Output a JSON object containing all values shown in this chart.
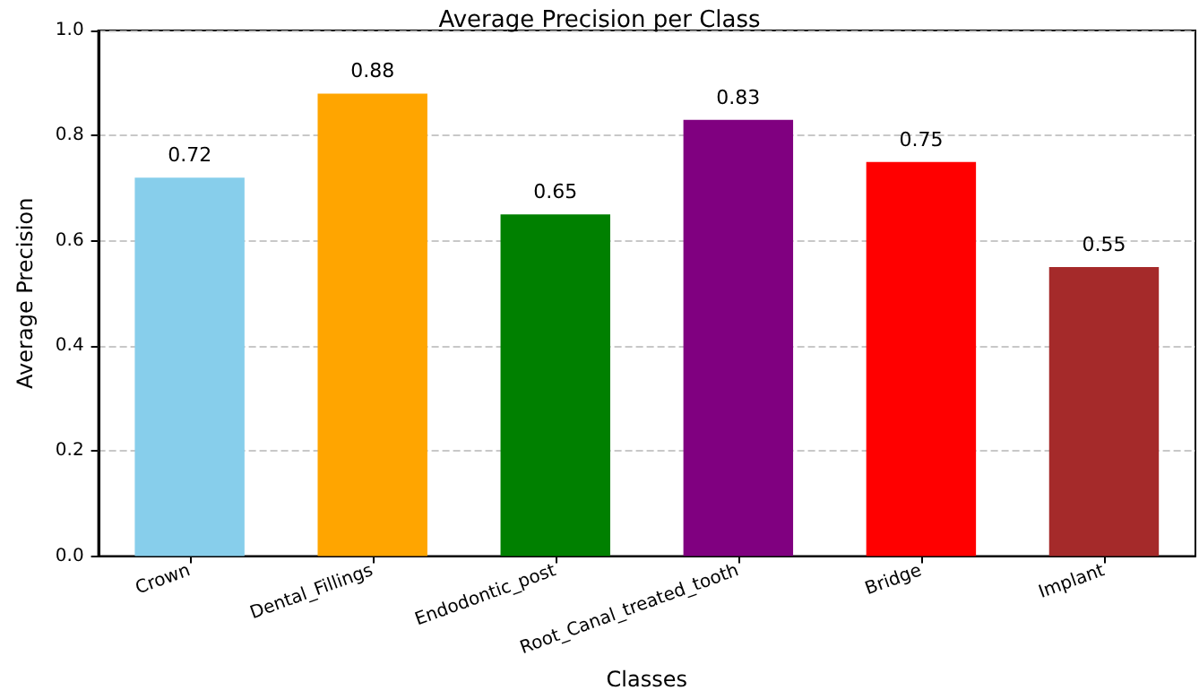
{
  "chart_data": {
    "type": "bar",
    "title": "Average Precision per Class",
    "xlabel": "Classes",
    "ylabel": "Average Precision",
    "categories": [
      "Crown",
      "Dental_Fillings",
      "Endodontic_post",
      "Root_Canal_treated_tooth",
      "Bridge",
      "Implant"
    ],
    "values": [
      0.72,
      0.88,
      0.65,
      0.83,
      0.75,
      0.55
    ],
    "colors": [
      "#87ceeb",
      "#ffa500",
      "#008000",
      "#800080",
      "#ff0000",
      "#a52a2a"
    ],
    "ylim": [
      0,
      1
    ],
    "yticks": [
      {
        "value": 0,
        "label": "0.0"
      },
      {
        "value": 0.2,
        "label": "0.2"
      },
      {
        "value": 0.4,
        "label": "0.4"
      },
      {
        "value": 0.6,
        "label": "0.6"
      },
      {
        "value": 0.8,
        "label": "0.8"
      },
      {
        "value": 1,
        "label": "1.0"
      }
    ],
    "grid": "y",
    "data_labels": true
  }
}
